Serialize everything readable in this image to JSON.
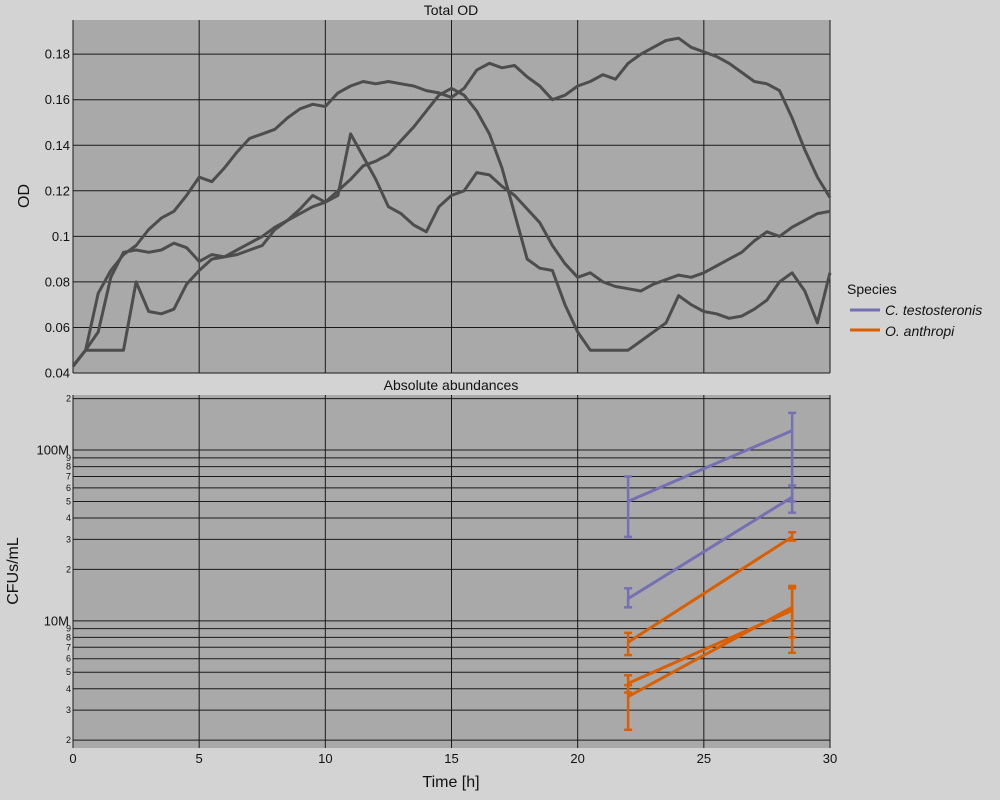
{
  "chart_data": [
    {
      "type": "line",
      "title": "Total OD",
      "xlabel": "",
      "ylabel": "OD",
      "xlim": [
        0,
        30
      ],
      "ylim": [
        0.04,
        0.195
      ],
      "xticks": [
        0,
        5,
        10,
        15,
        20,
        25,
        30
      ],
      "yticks": [
        0.04,
        0.06,
        0.08,
        0.1,
        0.12,
        0.14,
        0.16,
        0.18
      ],
      "ytick_labels": [
        "0.04",
        "0.06",
        "0.08",
        "0.1",
        "0.12",
        "0.14",
        "0.16",
        "0.18"
      ],
      "grid": true,
      "line_color": "#4d4d4d",
      "series": [
        {
          "x": [
            0,
            0.5,
            1,
            1.5,
            2,
            2.5,
            3,
            3.5,
            4,
            4.5,
            5,
            5.5,
            6,
            6.5,
            7,
            7.5,
            8,
            8.5,
            9,
            9.5,
            10,
            10.5,
            11,
            11.5,
            12,
            12.5,
            13,
            13.5,
            14,
            14.5,
            15,
            15.5,
            16,
            16.5,
            17,
            17.5,
            18,
            18.5,
            19,
            19.5,
            20,
            20.5,
            21,
            21.5,
            22,
            22.5,
            23,
            23.5,
            24,
            24.5,
            25,
            25.5,
            26,
            26.5,
            27,
            27.5,
            28,
            28.5,
            29,
            29.5,
            30
          ],
          "y": [
            0.043,
            0.05,
            0.058,
            0.082,
            0.093,
            0.094,
            0.093,
            0.094,
            0.097,
            0.095,
            0.089,
            0.092,
            0.091,
            0.094,
            0.097,
            0.1,
            0.104,
            0.107,
            0.11,
            0.113,
            0.115,
            0.12,
            0.125,
            0.131,
            0.133,
            0.136,
            0.142,
            0.148,
            0.155,
            0.162,
            0.165,
            0.162,
            0.155,
            0.145,
            0.13,
            0.11,
            0.09,
            0.086,
            0.085,
            0.07,
            0.058,
            0.05,
            0.05,
            0.05,
            0.05,
            0.054,
            0.058,
            0.062,
            0.074,
            0.07,
            0.067,
            0.066,
            0.064,
            0.065,
            0.068,
            0.072,
            0.08,
            0.084,
            0.076,
            0.062,
            0.084
          ]
        },
        {
          "x": [
            0,
            0.5,
            1,
            1.5,
            2,
            2.5,
            3,
            3.5,
            4,
            4.5,
            5,
            5.5,
            6,
            6.5,
            7,
            7.5,
            8,
            8.5,
            9,
            9.5,
            10,
            10.5,
            11,
            11.5,
            12,
            12.5,
            13,
            13.5,
            14,
            14.5,
            15,
            15.5,
            16,
            16.5,
            17,
            17.5,
            18,
            18.5,
            19,
            19.5,
            20,
            20.5,
            21,
            21.5,
            22,
            22.5,
            23,
            23.5,
            24,
            24.5,
            25,
            25.5,
            26,
            26.5,
            27,
            27.5,
            28,
            28.5,
            29,
            29.5,
            30
          ],
          "y": [
            0.043,
            0.05,
            0.075,
            0.085,
            0.092,
            0.096,
            0.103,
            0.108,
            0.111,
            0.118,
            0.126,
            0.124,
            0.13,
            0.137,
            0.143,
            0.145,
            0.147,
            0.152,
            0.156,
            0.158,
            0.157,
            0.163,
            0.166,
            0.168,
            0.167,
            0.168,
            0.167,
            0.166,
            0.164,
            0.163,
            0.161,
            0.165,
            0.173,
            0.176,
            0.174,
            0.175,
            0.17,
            0.166,
            0.16,
            0.162,
            0.166,
            0.168,
            0.171,
            0.169,
            0.176,
            0.18,
            0.183,
            0.186,
            0.187,
            0.183,
            0.181,
            0.179,
            0.176,
            0.172,
            0.168,
            0.167,
            0.164,
            0.152,
            0.138,
            0.126,
            0.117
          ]
        },
        {
          "x": [
            0,
            0.5,
            1,
            1.5,
            2,
            2.5,
            3,
            3.5,
            4,
            4.5,
            5,
            5.5,
            6,
            6.5,
            7,
            7.5,
            8,
            8.5,
            9,
            9.5,
            10,
            10.5,
            11,
            11.5,
            12,
            12.5,
            13,
            13.5,
            14,
            14.5,
            15,
            15.5,
            16,
            16.5,
            17,
            17.5,
            18,
            18.5,
            19,
            19.5,
            20,
            20.5,
            21,
            21.5,
            22,
            22.5,
            23,
            23.5,
            24,
            24.5,
            25,
            25.5,
            26,
            26.5,
            27,
            27.5,
            28,
            28.5,
            29,
            29.5,
            30
          ],
          "y": [
            0.043,
            0.05,
            0.05,
            0.05,
            0.05,
            0.08,
            0.067,
            0.066,
            0.068,
            0.079,
            0.085,
            0.09,
            0.091,
            0.092,
            0.094,
            0.096,
            0.103,
            0.107,
            0.112,
            0.118,
            0.115,
            0.118,
            0.145,
            0.135,
            0.125,
            0.113,
            0.11,
            0.105,
            0.102,
            0.113,
            0.118,
            0.12,
            0.128,
            0.127,
            0.122,
            0.118,
            0.112,
            0.106,
            0.096,
            0.088,
            0.082,
            0.084,
            0.08,
            0.078,
            0.077,
            0.076,
            0.079,
            0.081,
            0.083,
            0.082,
            0.084,
            0.087,
            0.09,
            0.093,
            0.098,
            0.102,
            0.1,
            0.104,
            0.107,
            0.11,
            0.111
          ]
        }
      ]
    },
    {
      "type": "line",
      "title": "Absolute abundances",
      "xlabel": "Time [h]",
      "ylabel": "CFUs/mL",
      "xlim": [
        0,
        30
      ],
      "ylim": [
        1800000,
        210000000
      ],
      "yscale": "log",
      "xticks": [
        0,
        5,
        10,
        15,
        20,
        25,
        30
      ],
      "major_yticks": [
        10000000,
        100000000
      ],
      "major_ytick_labels": [
        "10M",
        "100M"
      ],
      "minor_yticks": [
        2000000,
        3000000,
        4000000,
        5000000,
        6000000,
        7000000,
        8000000,
        9000000,
        20000000,
        30000000,
        40000000,
        50000000,
        60000000,
        70000000,
        80000000,
        90000000,
        200000000
      ],
      "minor_ytick_labels": [
        "2",
        "3",
        "4",
        "5",
        "6",
        "7",
        "8",
        "9",
        "2",
        "3",
        "4",
        "5",
        "6",
        "7",
        "8",
        "9",
        "2"
      ],
      "grid": true,
      "legend": {
        "title": "Species",
        "placement": "right",
        "entries": [
          "C. testosteronis",
          "O. anthropi"
        ]
      },
      "series": [
        {
          "name": "C. testosteronis",
          "color": "#7570b3",
          "x": [
            22,
            28.5
          ],
          "y": [
            50000000,
            130000000
          ],
          "err_low": [
            31000000,
            50000000
          ],
          "err_high": [
            70000000,
            165000000
          ]
        },
        {
          "name": "C. testosteronis",
          "color": "#7570b3",
          "x": [
            22,
            28.5
          ],
          "y": [
            13500000,
            53000000
          ],
          "err_low": [
            12000000,
            43000000
          ],
          "err_high": [
            15500000,
            62000000
          ]
        },
        {
          "name": "O. anthropi",
          "color": "#d95f02",
          "x": [
            22,
            28.5
          ],
          "y": [
            7500000,
            31000000
          ],
          "err_low": [
            6300000,
            29500000
          ],
          "err_high": [
            8500000,
            33000000
          ]
        },
        {
          "name": "O. anthropi",
          "color": "#d95f02",
          "x": [
            22,
            28.5
          ],
          "y": [
            4300000,
            11500000
          ],
          "err_low": [
            3800000,
            6500000
          ],
          "err_high": [
            4800000,
            15500000
          ]
        },
        {
          "name": "O. anthropi",
          "color": "#d95f02",
          "x": [
            22,
            28.5
          ],
          "y": [
            3600000,
            12000000
          ],
          "err_low": [
            2300000,
            8000000
          ],
          "err_high": [
            4200000,
            16000000
          ]
        }
      ]
    }
  ]
}
